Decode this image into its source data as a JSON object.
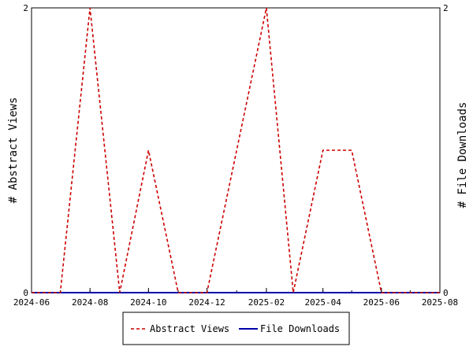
{
  "chart_data": {
    "type": "line",
    "title": "",
    "xlabel": "",
    "ylabel_left": "# Abstract Views",
    "ylabel_right": "# File Downloads",
    "x_ticks": [
      "2024-06",
      "2024-08",
      "2024-10",
      "2024-12",
      "2025-02",
      "2025-04",
      "2025-06",
      "2025-08"
    ],
    "y_left_ticks": [
      "0",
      "2"
    ],
    "y_right_ticks": [
      "0",
      "2"
    ],
    "xlim": [
      "2024-06-01",
      "2025-08-01"
    ],
    "ylim_left": [
      0,
      2
    ],
    "ylim_right": [
      0,
      2
    ],
    "grid": false,
    "legend_position": "bottom",
    "series": [
      {
        "name": "Abstract Views",
        "axis": "left",
        "style": "dashed",
        "color": "#cc0000",
        "x": [
          "2024-06-01",
          "2024-07-01",
          "2024-08-01",
          "2024-09-01",
          "2024-10-01",
          "2024-11-01",
          "2024-12-01",
          "2025-01-01",
          "2025-02-01",
          "2025-03-01",
          "2025-04-01",
          "2025-05-01",
          "2025-06-01",
          "2025-07-01",
          "2025-08-01"
        ],
        "y": [
          0,
          0,
          2,
          0,
          1,
          0,
          0,
          1,
          2,
          0,
          1,
          1,
          0,
          0,
          0
        ]
      },
      {
        "name": "File Downloads",
        "axis": "right",
        "style": "solid",
        "color": "#0000aa",
        "x": [
          "2024-06-01",
          "2024-07-01",
          "2024-08-01",
          "2024-09-01",
          "2024-10-01",
          "2024-11-01",
          "2024-12-01",
          "2025-01-01",
          "2025-02-01",
          "2025-03-01",
          "2025-04-01",
          "2025-05-01",
          "2025-06-01",
          "2025-07-01",
          "2025-08-01"
        ],
        "y": [
          0,
          0,
          0,
          0,
          0,
          0,
          0,
          0,
          0,
          0,
          0,
          0,
          0,
          0,
          0
        ]
      }
    ]
  }
}
